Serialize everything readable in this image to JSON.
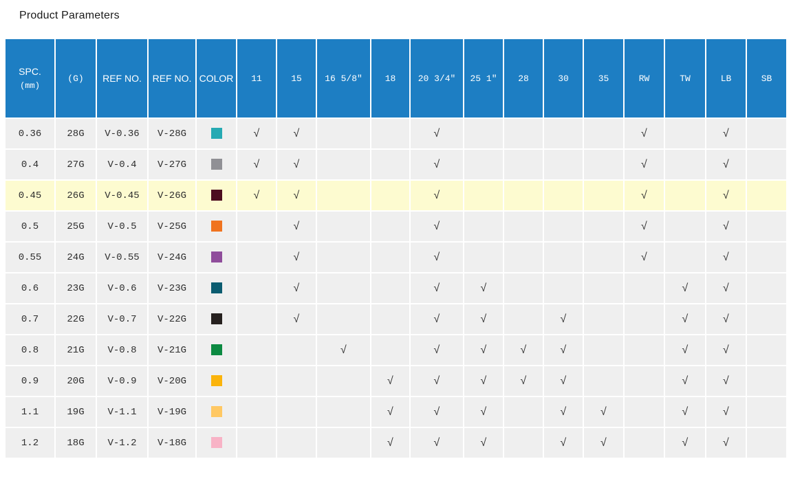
{
  "page": {
    "title": "Product Parameters"
  },
  "table": {
    "header_bg": "#1d7ec3",
    "row_bg": "#efefef",
    "highlight_row_bg": "#fdfbd0",
    "check_glyph": "√",
    "fixed_columns": [
      {
        "key": "spc",
        "label": "SPC.",
        "sublabel": "(mm)"
      },
      {
        "key": "g",
        "label": "(G)"
      },
      {
        "key": "ref1",
        "label": "REF NO."
      },
      {
        "key": "ref2",
        "label": "REF NO."
      },
      {
        "key": "color",
        "label": "COLOR"
      }
    ],
    "check_columns": [
      {
        "key": "11",
        "label": "11"
      },
      {
        "key": "15",
        "label": "15"
      },
      {
        "key": "16",
        "label": "16 5/8″"
      },
      {
        "key": "18",
        "label": "18"
      },
      {
        "key": "20",
        "label": "20 3/4″"
      },
      {
        "key": "25",
        "label": "25 1″"
      },
      {
        "key": "28",
        "label": "28"
      },
      {
        "key": "30",
        "label": "30"
      },
      {
        "key": "35",
        "label": "35"
      },
      {
        "key": "RW",
        "label": "RW"
      },
      {
        "key": "TW",
        "label": "TW"
      },
      {
        "key": "LB",
        "label": "LB"
      },
      {
        "key": "SB",
        "label": "SB"
      }
    ],
    "rows": [
      {
        "spc": "0.36",
        "g": "28G",
        "ref1": "V-0.36",
        "ref2": "V-28G",
        "swatch": "#26aab3",
        "highlight": false,
        "checks": [
          "11",
          "15",
          "20",
          "RW",
          "LB"
        ]
      },
      {
        "spc": "0.4",
        "g": "27G",
        "ref1": "V-0.4",
        "ref2": "V-27G",
        "swatch": "#909095",
        "highlight": false,
        "checks": [
          "11",
          "15",
          "20",
          "RW",
          "LB"
        ]
      },
      {
        "spc": "0.45",
        "g": "26G",
        "ref1": "V-0.45",
        "ref2": "V-26G",
        "swatch": "#4d0d20",
        "highlight": true,
        "checks": [
          "11",
          "15",
          "20",
          "RW",
          "LB"
        ]
      },
      {
        "spc": "0.5",
        "g": "25G",
        "ref1": "V-0.5",
        "ref2": "V-25G",
        "swatch": "#f0731f",
        "highlight": false,
        "checks": [
          "15",
          "20",
          "RW",
          "LB"
        ]
      },
      {
        "spc": "0.55",
        "g": "24G",
        "ref1": "V-0.55",
        "ref2": "V-24G",
        "swatch": "#8f4d9b",
        "highlight": false,
        "checks": [
          "15",
          "20",
          "RW",
          "LB"
        ]
      },
      {
        "spc": "0.6",
        "g": "23G",
        "ref1": "V-0.6",
        "ref2": "V-23G",
        "swatch": "#0b5c70",
        "highlight": false,
        "checks": [
          "15",
          "20",
          "25",
          "TW",
          "LB"
        ]
      },
      {
        "spc": "0.7",
        "g": "22G",
        "ref1": "V-0.7",
        "ref2": "V-22G",
        "swatch": "#26211f",
        "highlight": false,
        "checks": [
          "15",
          "20",
          "25",
          "30",
          "TW",
          "LB"
        ]
      },
      {
        "spc": "0.8",
        "g": "21G",
        "ref1": "V-0.8",
        "ref2": "V-21G",
        "swatch": "#0c8a42",
        "highlight": false,
        "checks": [
          "16",
          "20",
          "25",
          "28",
          "30",
          "TW",
          "LB"
        ]
      },
      {
        "spc": "0.9",
        "g": "20G",
        "ref1": "V-0.9",
        "ref2": "V-20G",
        "swatch": "#fbb40c",
        "highlight": false,
        "checks": [
          "18",
          "20",
          "25",
          "28",
          "30",
          "TW",
          "LB"
        ]
      },
      {
        "spc": "1.1",
        "g": "19G",
        "ref1": "V-1.1",
        "ref2": "V-19G",
        "swatch": "#ffc863",
        "highlight": false,
        "checks": [
          "18",
          "20",
          "25",
          "30",
          "35",
          "TW",
          "LB"
        ]
      },
      {
        "spc": "1.2",
        "g": "18G",
        "ref1": "V-1.2",
        "ref2": "V-18G",
        "swatch": "#f8b3c6",
        "highlight": false,
        "checks": [
          "18",
          "20",
          "25",
          "30",
          "35",
          "TW",
          "LB"
        ]
      }
    ]
  }
}
